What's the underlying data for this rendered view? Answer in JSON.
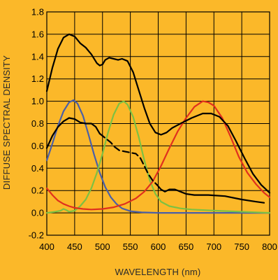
{
  "chart_data": {
    "type": "line",
    "xlabel": "WAVELENGTH (nm)",
    "ylabel": "DIFFUSE SPECTRAL DENSITY",
    "xlim": [
      400,
      800
    ],
    "ylim": [
      -0.2,
      1.8
    ],
    "x_ticks": [
      400,
      450,
      500,
      550,
      600,
      650,
      700,
      750,
      800
    ],
    "y_ticks": [
      -0.2,
      0.0,
      0.2,
      0.4,
      0.6,
      0.8,
      1.0,
      1.2,
      1.4,
      1.6,
      1.8
    ],
    "y_tick_labels": [
      "-0.2",
      "0.0",
      "0.2",
      "0.4",
      "0.6",
      "0.8",
      "1.0",
      "1.2",
      "1.4",
      "1.6",
      "1.8"
    ],
    "grid": true,
    "colors": {
      "background": "#FBB829",
      "grid": "#000000",
      "blue": "#4A5FA8",
      "green": "#7DC142",
      "red": "#E0301E",
      "black": "#000000"
    },
    "series": [
      {
        "color": "blue",
        "dash": false,
        "points": [
          [
            400,
            0.47
          ],
          [
            410,
            0.62
          ],
          [
            420,
            0.78
          ],
          [
            430,
            0.91
          ],
          [
            440,
            0.99
          ],
          [
            448,
            1.01
          ],
          [
            455,
            0.98
          ],
          [
            465,
            0.87
          ],
          [
            475,
            0.7
          ],
          [
            485,
            0.52
          ],
          [
            495,
            0.36
          ],
          [
            505,
            0.23
          ],
          [
            515,
            0.14
          ],
          [
            525,
            0.08
          ],
          [
            535,
            0.04
          ],
          [
            550,
            0.015
          ],
          [
            570,
            0.005
          ],
          [
            600,
            0.0
          ],
          [
            650,
            0.0
          ],
          [
            700,
            0.0
          ],
          [
            750,
            0.0
          ],
          [
            800,
            0.0
          ]
        ]
      },
      {
        "color": "green",
        "dash": false,
        "points": [
          [
            400,
            0.0
          ],
          [
            415,
            0.01
          ],
          [
            425,
            0.02
          ],
          [
            430,
            0.035
          ],
          [
            435,
            0.025
          ],
          [
            440,
            0.01
          ],
          [
            450,
            0.02
          ],
          [
            460,
            0.06
          ],
          [
            470,
            0.12
          ],
          [
            480,
            0.22
          ],
          [
            490,
            0.36
          ],
          [
            500,
            0.53
          ],
          [
            510,
            0.72
          ],
          [
            520,
            0.88
          ],
          [
            530,
            0.98
          ],
          [
            538,
            1.0
          ],
          [
            545,
            0.97
          ],
          [
            555,
            0.86
          ],
          [
            565,
            0.68
          ],
          [
            575,
            0.47
          ],
          [
            585,
            0.29
          ],
          [
            595,
            0.17
          ],
          [
            605,
            0.1
          ],
          [
            620,
            0.06
          ],
          [
            640,
            0.04
          ],
          [
            660,
            0.03
          ],
          [
            700,
            0.02
          ],
          [
            750,
            0.01
          ],
          [
            800,
            0.0
          ]
        ]
      },
      {
        "color": "red",
        "dash": false,
        "points": [
          [
            400,
            0.22
          ],
          [
            410,
            0.16
          ],
          [
            420,
            0.11
          ],
          [
            430,
            0.08
          ],
          [
            440,
            0.06
          ],
          [
            450,
            0.045
          ],
          [
            465,
            0.035
          ],
          [
            480,
            0.03
          ],
          [
            500,
            0.035
          ],
          [
            520,
            0.05
          ],
          [
            540,
            0.08
          ],
          [
            560,
            0.13
          ],
          [
            575,
            0.19
          ],
          [
            590,
            0.28
          ],
          [
            605,
            0.42
          ],
          [
            620,
            0.58
          ],
          [
            635,
            0.73
          ],
          [
            650,
            0.85
          ],
          [
            665,
            0.95
          ],
          [
            680,
            1.0
          ],
          [
            690,
            0.99
          ],
          [
            700,
            0.96
          ],
          [
            715,
            0.85
          ],
          [
            730,
            0.68
          ],
          [
            745,
            0.5
          ],
          [
            760,
            0.36
          ],
          [
            775,
            0.26
          ],
          [
            790,
            0.18
          ],
          [
            800,
            0.14
          ]
        ]
      },
      {
        "color": "black",
        "dash": false,
        "points": [
          [
            400,
            1.09
          ],
          [
            410,
            1.3
          ],
          [
            420,
            1.47
          ],
          [
            430,
            1.57
          ],
          [
            440,
            1.6
          ],
          [
            450,
            1.58
          ],
          [
            460,
            1.52
          ],
          [
            470,
            1.48
          ],
          [
            480,
            1.42
          ],
          [
            490,
            1.34
          ],
          [
            495,
            1.32
          ],
          [
            500,
            1.33
          ],
          [
            505,
            1.37
          ],
          [
            512,
            1.39
          ],
          [
            520,
            1.38
          ],
          [
            528,
            1.37
          ],
          [
            535,
            1.38
          ],
          [
            545,
            1.36
          ],
          [
            555,
            1.26
          ],
          [
            565,
            1.1
          ],
          [
            575,
            0.94
          ],
          [
            585,
            0.8
          ],
          [
            595,
            0.72
          ],
          [
            605,
            0.7
          ],
          [
            615,
            0.72
          ],
          [
            625,
            0.76
          ],
          [
            640,
            0.8
          ],
          [
            660,
            0.85
          ],
          [
            680,
            0.89
          ],
          [
            695,
            0.89
          ],
          [
            710,
            0.86
          ],
          [
            725,
            0.78
          ],
          [
            740,
            0.64
          ],
          [
            755,
            0.49
          ],
          [
            770,
            0.35
          ],
          [
            785,
            0.25
          ],
          [
            800,
            0.18
          ]
        ]
      },
      {
        "color": "black",
        "dash": false,
        "points": [
          [
            400,
            0.58
          ],
          [
            410,
            0.69
          ],
          [
            420,
            0.77
          ],
          [
            430,
            0.82
          ],
          [
            440,
            0.85
          ],
          [
            450,
            0.84
          ],
          [
            460,
            0.81
          ],
          [
            470,
            0.8
          ],
          [
            480,
            0.8
          ],
          [
            488,
            0.77
          ],
          [
            495,
            0.71
          ]
        ]
      },
      {
        "color": "black",
        "dash": true,
        "points": [
          [
            495,
            0.71
          ],
          [
            505,
            0.67
          ],
          [
            515,
            0.63
          ],
          [
            522,
            0.59
          ],
          [
            530,
            0.56
          ],
          [
            540,
            0.55
          ],
          [
            550,
            0.54
          ],
          [
            560,
            0.53
          ],
          [
            568,
            0.49
          ],
          [
            575,
            0.42
          ],
          [
            582,
            0.35
          ],
          [
            590,
            0.29
          ],
          [
            598,
            0.25
          ]
        ]
      },
      {
        "color": "black",
        "dash": false,
        "points": [
          [
            598,
            0.25
          ],
          [
            605,
            0.21
          ],
          [
            612,
            0.19
          ],
          [
            620,
            0.21
          ],
          [
            630,
            0.21
          ],
          [
            640,
            0.19
          ],
          [
            650,
            0.17
          ],
          [
            665,
            0.16
          ],
          [
            690,
            0.16
          ],
          [
            720,
            0.15
          ],
          [
            750,
            0.12
          ],
          [
            775,
            0.1
          ],
          [
            790,
            0.09
          ]
        ]
      }
    ]
  }
}
